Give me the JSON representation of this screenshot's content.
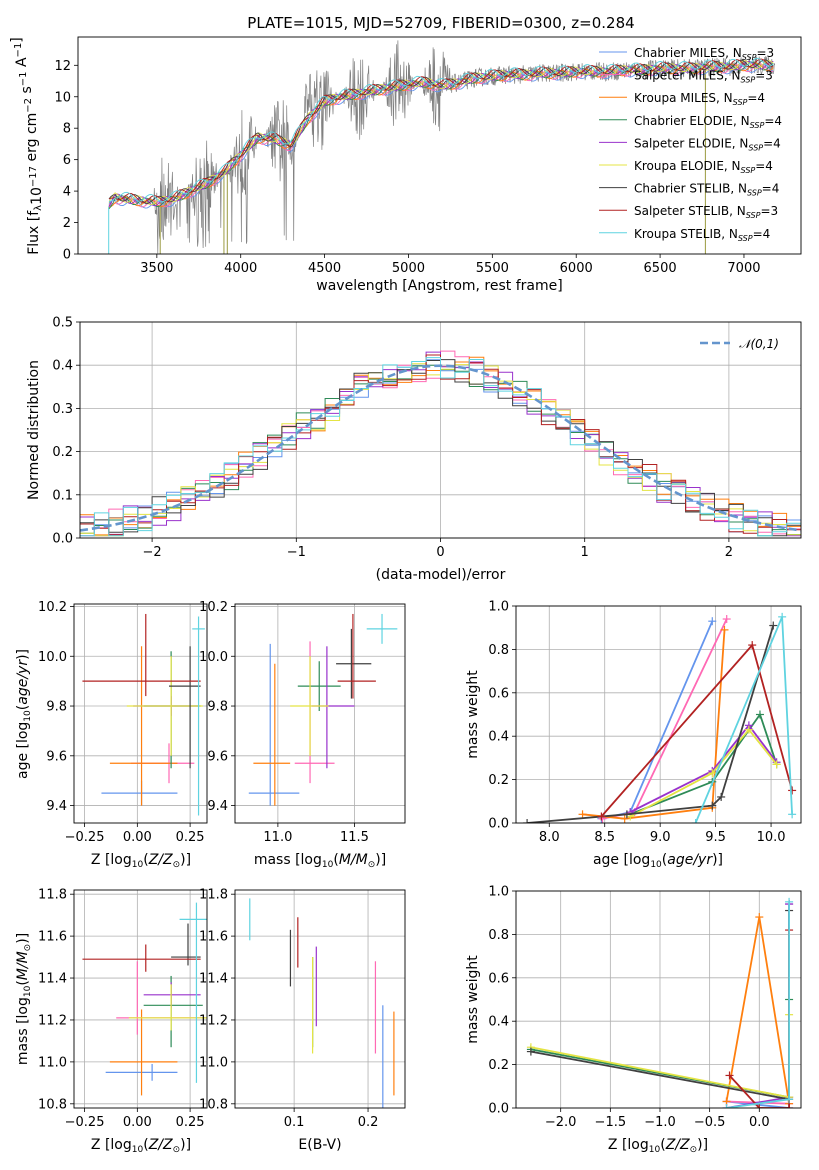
{
  "colors": {
    "chabrier_miles": "#6495ed",
    "salpeter_miles": "#ff69b4",
    "kroupa_miles": "#ff7f0e",
    "chabrier_elodie": "#2e8b57",
    "salpeter_elodie": "#9932cc",
    "kroupa_elodie": "#e4e444",
    "chabrier_stelib": "#404040",
    "salpeter_stelib": "#b22222",
    "kroupa_stelib": "#5fd3e0",
    "gaussian": "#6495cd",
    "spectrum": "#808080"
  },
  "chart_data": [
    {
      "id": "spectrum",
      "type": "line",
      "title": "PLATE=1015, MJD=52709, FIBERID=0300, z=0.284",
      "xlabel": "wavelength [Angstrom, rest frame]",
      "ylabel": "Flux [f_λ10^−17 erg cm^−2 s^−1 A^−1]",
      "xlim": [
        3030,
        7340
      ],
      "ylim": [
        0,
        13.8
      ],
      "xticks": [
        3500,
        4000,
        4500,
        5000,
        5500,
        6000,
        6500,
        7000
      ],
      "yticks": [
        0,
        2,
        4,
        6,
        8,
        10,
        12
      ],
      "legend_position": "right",
      "legend": [
        {
          "label": "Chabrier MILES, N",
          "sub": "SSP",
          "sup": "=3"
        },
        {
          "label": "Salpeter MILES, N",
          "sub": "SSP",
          "sup": "=3"
        },
        {
          "label": "Kroupa MILES, N",
          "sub": "SSP",
          "sup": "=4"
        },
        {
          "label": "Chabrier ELODIE, N",
          "sub": "SSP",
          "sup": "=4"
        },
        {
          "label": "Salpeter ELODIE, N",
          "sub": "SSP",
          "sup": "=4"
        },
        {
          "label": "Kroupa ELODIE, N",
          "sub": "SSP",
          "sup": "=4"
        },
        {
          "label": "Chabrier STELIB, N",
          "sub": "SSP",
          "sup": "=4"
        },
        {
          "label": "Salpeter STELIB, N",
          "sub": "SSP",
          "sup": "=3"
        },
        {
          "label": "Kroupa STELIB, N",
          "sub": "SSP",
          "sup": "=4"
        }
      ],
      "model_curve": {
        "x": [
          3210,
          3250,
          3300,
          3400,
          3500,
          3600,
          3700,
          3800,
          3900,
          4000,
          4100,
          4200,
          4300,
          4400,
          4500,
          4600,
          4700,
          4800,
          4900,
          5000,
          5100,
          5200,
          5300,
          5400,
          5500,
          5600,
          5700,
          5800,
          5900,
          6000,
          6100,
          6200,
          6300,
          6400,
          6500,
          6600,
          6700,
          6800,
          6900,
          7000,
          7100,
          7180
        ],
        "y": [
          3.1,
          3.6,
          3.5,
          3.4,
          3.3,
          3.5,
          4.0,
          4.5,
          5.2,
          6.3,
          7.4,
          7.3,
          6.9,
          8.6,
          9.7,
          10.0,
          10.2,
          10.4,
          10.6,
          10.8,
          10.9,
          10.7,
          10.9,
          11.2,
          11.3,
          11.4,
          11.4,
          11.5,
          11.5,
          11.6,
          11.6,
          11.6,
          11.7,
          11.7,
          11.8,
          11.8,
          11.8,
          11.9,
          11.9,
          12.0,
          12.0,
          12.0
        ]
      }
    },
    {
      "id": "residuals",
      "type": "histogram",
      "xlabel": "(data-model)/error",
      "ylabel": "Normed distribution",
      "xlim": [
        -2.5,
        2.5
      ],
      "ylim": [
        0,
        0.5
      ],
      "xticks": [
        -2,
        -1,
        0,
        1,
        2
      ],
      "yticks": [
        0.0,
        0.1,
        0.2,
        0.3,
        0.4,
        0.5
      ],
      "legend": "𝒩(0,1)",
      "bin_width": 0.1,
      "reference": {
        "name": "𝒩(0,1)",
        "mean": 0,
        "sigma": 1
      }
    },
    {
      "id": "age_vs_Z",
      "type": "errorbar",
      "xlabel": "Z [log10(Z/Z⊙)]",
      "ylabel": "age [log10(age/yr)]",
      "xlim": [
        -0.3,
        0.33
      ],
      "ylim": [
        9.33,
        10.21
      ],
      "xticks": [
        -0.25,
        0.0,
        0.25
      ],
      "yticks": [
        9.4,
        9.6,
        9.8,
        10.0,
        10.2
      ],
      "points": [
        {
          "key": "chabrier_miles",
          "x": 0.02,
          "xerr": [
            0.19,
            0.17
          ],
          "y": 9.45,
          "yerr": [
            0.05,
            0.05
          ]
        },
        {
          "key": "salpeter_miles",
          "x": 0.15,
          "xerr": [
            0.18,
            0.12
          ],
          "y": 9.57,
          "yerr": [
            0.08,
            0.08
          ]
        },
        {
          "key": "kroupa_miles",
          "x": 0.02,
          "xerr": [
            0.15,
            0.17
          ],
          "y": 9.57,
          "yerr": [
            0.17,
            0.47
          ]
        },
        {
          "key": "chabrier_elodie",
          "x": 0.16,
          "xerr": [
            0.13,
            0.14
          ],
          "y": 9.8,
          "yerr": [
            0.25,
            0.22
          ]
        },
        {
          "key": "salpeter_elodie",
          "x": 0.16,
          "xerr": [
            0.18,
            0.13
          ],
          "y": 9.8,
          "yerr": [
            0.04,
            0.04
          ]
        },
        {
          "key": "kroupa_elodie",
          "x": 0.16,
          "xerr": [
            0.21,
            0.15
          ],
          "y": 9.8,
          "yerr": [
            0.2,
            0.2
          ]
        },
        {
          "key": "chabrier_stelib",
          "x": 0.25,
          "xerr": [
            0.1,
            0.05
          ],
          "y": 9.88,
          "yerr": [
            0.33,
            0.16
          ]
        },
        {
          "key": "salpeter_stelib",
          "x": 0.04,
          "xerr": [
            0.3,
            0.26
          ],
          "y": 9.9,
          "yerr": [
            0.06,
            0.27
          ]
        },
        {
          "key": "kroupa_stelib",
          "x": 0.29,
          "xerr": [
            0.03,
            0.03
          ],
          "y": 10.11,
          "yerr": [
            0.75,
            0.05
          ]
        }
      ]
    },
    {
      "id": "age_vs_mass",
      "type": "errorbar",
      "xlabel": "mass [log10(M/M⊙)]",
      "ylabel": "",
      "xlim": [
        10.72,
        11.83
      ],
      "ylim": [
        9.33,
        10.21
      ],
      "xticks": [
        11.0,
        11.5
      ],
      "yticks": [
        9.4,
        9.6,
        9.8,
        10.0,
        10.2
      ],
      "points": [
        {
          "key": "chabrier_miles",
          "x": 10.95,
          "xerr": [
            0.14,
            0.19
          ],
          "y": 9.45,
          "yerr": [
            0.05,
            0.6
          ]
        },
        {
          "key": "salpeter_miles",
          "x": 11.21,
          "xerr": [
            0.1,
            0.16
          ],
          "y": 9.57,
          "yerr": [
            0.08,
            0.49
          ]
        },
        {
          "key": "kroupa_miles",
          "x": 10.98,
          "xerr": [
            0.14,
            0.1
          ],
          "y": 9.57,
          "yerr": [
            0.17,
            0.4
          ]
        },
        {
          "key": "chabrier_elodie",
          "x": 11.27,
          "xerr": [
            0.14,
            0.14
          ],
          "y": 9.88,
          "yerr": [
            0.1,
            0.1
          ]
        },
        {
          "key": "salpeter_elodie",
          "x": 11.32,
          "xerr": [
            0.1,
            0.18
          ],
          "y": 9.8,
          "yerr": [
            0.25,
            0.24
          ]
        },
        {
          "key": "kroupa_elodie",
          "x": 11.21,
          "xerr": [
            0.13,
            0.12
          ],
          "y": 9.8,
          "yerr": [
            0.2,
            0.2
          ]
        },
        {
          "key": "chabrier_stelib",
          "x": 11.48,
          "xerr": [
            0.1,
            0.13
          ],
          "y": 9.97,
          "yerr": [
            0.14,
            0.14
          ]
        },
        {
          "key": "salpeter_stelib",
          "x": 11.49,
          "xerr": [
            0.1,
            0.15
          ],
          "y": 9.9,
          "yerr": [
            0.07,
            0.27
          ]
        },
        {
          "key": "kroupa_stelib",
          "x": 11.68,
          "xerr": [
            0.1,
            0.1
          ],
          "y": 10.11,
          "yerr": [
            0.06,
            0.06
          ]
        }
      ]
    },
    {
      "id": "weight_vs_age",
      "type": "line",
      "xlabel": "age [log10(age/yr)]",
      "ylabel": "mass weight",
      "xlim": [
        7.7,
        10.27
      ],
      "ylim": [
        0,
        1.0
      ],
      "xticks": [
        8.0,
        8.5,
        9.0,
        9.5,
        10.0
      ],
      "yticks": [
        0.0,
        0.2,
        0.4,
        0.6,
        0.8,
        1.0
      ],
      "series": [
        {
          "key": "chabrier_miles",
          "x": [
            8.47,
            8.73,
            9.47
          ],
          "y": [
            0.02,
            0.05,
            0.93
          ]
        },
        {
          "key": "salpeter_miles",
          "x": [
            8.48,
            8.77,
            9.6
          ],
          "y": [
            0.02,
            0.05,
            0.94
          ]
        },
        {
          "key": "kroupa_miles",
          "x": [
            8.3,
            8.68,
            9.47,
            9.58
          ],
          "y": [
            0.04,
            0.02,
            0.07,
            0.89
          ]
        },
        {
          "key": "chabrier_elodie",
          "x": [
            8.73,
            9.47,
            9.9,
            10.05
          ],
          "y": [
            0.04,
            0.19,
            0.5,
            0.27
          ]
        },
        {
          "key": "salpeter_elodie",
          "x": [
            8.73,
            9.47,
            9.8,
            10.05
          ],
          "y": [
            0.05,
            0.24,
            0.45,
            0.28
          ]
        },
        {
          "key": "kroupa_elodie",
          "x": [
            8.73,
            9.47,
            9.8,
            10.05
          ],
          "y": [
            0.03,
            0.23,
            0.43,
            0.27
          ]
        },
        {
          "key": "chabrier_stelib",
          "x": [
            7.8,
            8.7,
            9.47,
            9.55,
            10.02
          ],
          "y": [
            0.0,
            0.04,
            0.08,
            0.12,
            0.91
          ]
        },
        {
          "key": "salpeter_stelib",
          "x": [
            8.47,
            9.83,
            10.19
          ],
          "y": [
            0.03,
            0.82,
            0.15
          ]
        },
        {
          "key": "kroupa_stelib",
          "x": [
            9.32,
            10.1,
            10.19
          ],
          "y": [
            0.0,
            0.95,
            0.04
          ]
        }
      ]
    },
    {
      "id": "mass_vs_Z",
      "type": "errorbar",
      "xlabel": "Z [log10(Z/Z⊙)]",
      "ylabel": "mass [log10(M/M⊙)]",
      "xlim": [
        -0.3,
        0.33
      ],
      "ylim": [
        10.78,
        11.82
      ],
      "xticks": [
        -0.25,
        0.0,
        0.25
      ],
      "yticks": [
        10.8,
        11.0,
        11.2,
        11.4,
        11.6,
        11.8
      ],
      "points": [
        {
          "key": "chabrier_miles",
          "x": 0.07,
          "xerr": [
            0.22,
            0.12
          ],
          "y": 10.95,
          "yerr": [
            0.04,
            0.04
          ]
        },
        {
          "key": "salpeter_miles",
          "x": 0.0,
          "xerr": [
            0.1,
            0.32
          ],
          "y": 11.21,
          "yerr": [
            0.08,
            0.27
          ]
        },
        {
          "key": "kroupa_miles",
          "x": 0.02,
          "xerr": [
            0.15,
            0.17
          ],
          "y": 11.0,
          "yerr": [
            0.16,
            0.25
          ]
        },
        {
          "key": "chabrier_elodie",
          "x": 0.16,
          "xerr": [
            0.13,
            0.15
          ],
          "y": 11.27,
          "yerr": [
            0.2,
            0.14
          ]
        },
        {
          "key": "salpeter_elodie",
          "x": 0.16,
          "xerr": [
            0.13,
            0.14
          ],
          "y": 11.32,
          "yerr": [
            0.06,
            0.06
          ]
        },
        {
          "key": "kroupa_elodie",
          "x": 0.16,
          "xerr": [
            0.2,
            0.2
          ],
          "y": 11.21,
          "yerr": [
            0.06,
            0.16
          ]
        },
        {
          "key": "chabrier_stelib",
          "x": 0.24,
          "xerr": [
            0.08,
            0.06
          ],
          "y": 11.5,
          "yerr": [
            0.04,
            0.16
          ]
        },
        {
          "key": "salpeter_stelib",
          "x": 0.04,
          "xerr": [
            0.3,
            0.26
          ],
          "y": 11.49,
          "yerr": [
            0.06,
            0.07
          ]
        },
        {
          "key": "kroupa_stelib",
          "x": 0.28,
          "xerr": [
            0.08,
            0.05
          ],
          "y": 11.68,
          "yerr": [
            0.78,
            0.08
          ]
        }
      ]
    },
    {
      "id": "mass_vs_ebv",
      "type": "errorbar",
      "xlabel": "E(B-V)",
      "ylabel": "",
      "xlim": [
        0.02,
        0.25
      ],
      "ylim": [
        10.78,
        11.82
      ],
      "xticks": [
        0.1,
        0.2
      ],
      "yticks": [
        10.8,
        11.0,
        11.2,
        11.4,
        11.6,
        11.8
      ],
      "points": [
        {
          "key": "chabrier_miles",
          "x": 0.22,
          "xerr": [
            0,
            0
          ],
          "y": 11.0,
          "yerr": [
            0.22,
            0.27
          ]
        },
        {
          "key": "salpeter_miles",
          "x": 0.21,
          "xerr": [
            0,
            0
          ],
          "y": 11.21,
          "yerr": [
            0.17,
            0.27
          ]
        },
        {
          "key": "kroupa_miles",
          "x": 0.235,
          "xerr": [
            0,
            0
          ],
          "y": 11.0,
          "yerr": [
            0.16,
            0.24
          ]
        },
        {
          "key": "chabrier_elodie",
          "x": 0.125,
          "xerr": [
            0,
            0
          ],
          "y": 11.27,
          "yerr": [
            0.2,
            0.23
          ]
        },
        {
          "key": "salpeter_elodie",
          "x": 0.13,
          "xerr": [
            0,
            0
          ],
          "y": 11.32,
          "yerr": [
            0.15,
            0.23
          ]
        },
        {
          "key": "kroupa_elodie",
          "x": 0.125,
          "xerr": [
            0,
            0
          ],
          "y": 11.21,
          "yerr": [
            0.17,
            0.29
          ]
        },
        {
          "key": "chabrier_stelib",
          "x": 0.095,
          "xerr": [
            0,
            0
          ],
          "y": 11.5,
          "yerr": [
            0.14,
            0.13
          ]
        },
        {
          "key": "salpeter_stelib",
          "x": 0.105,
          "xerr": [
            0,
            0
          ],
          "y": 11.57,
          "yerr": [
            0.12,
            0.12
          ]
        },
        {
          "key": "kroupa_stelib",
          "x": 0.04,
          "xerr": [
            0,
            0
          ],
          "y": 11.68,
          "yerr": [
            0.1,
            0.1
          ]
        }
      ]
    },
    {
      "id": "weight_vs_Z",
      "type": "line",
      "xlabel": "Z [log10(Z/Z⊙)]",
      "ylabel": "mass weight",
      "xlim": [
        -2.45,
        0.42
      ],
      "ylim": [
        0,
        1.0
      ],
      "xticks": [
        -2.0,
        -1.5,
        -1.0,
        -0.5,
        0.0
      ],
      "yticks": [
        0.0,
        0.2,
        0.4,
        0.6,
        0.8,
        1.0
      ],
      "series": [
        {
          "key": "chabrier_miles",
          "x": [
            -0.33,
            0.3,
            0.3
          ],
          "y": [
            0.03,
            0.0,
            0.94
          ]
        },
        {
          "key": "salpeter_miles",
          "x": [
            -0.33,
            0.3,
            0.3
          ],
          "y": [
            0.03,
            0.02,
            0.94
          ]
        },
        {
          "key": "kroupa_miles",
          "x": [
            -0.33,
            0.0,
            0.3
          ],
          "y": [
            0.03,
            0.88,
            0.02
          ]
        },
        {
          "key": "chabrier_elodie",
          "x": [
            -2.3,
            0.3,
            0.3
          ],
          "y": [
            0.27,
            0.05,
            0.5
          ]
        },
        {
          "key": "salpeter_elodie",
          "x": [
            -0.33,
            0.3,
            0.3
          ],
          "y": [
            0.0,
            0.05,
            0.94
          ]
        },
        {
          "key": "kroupa_elodie",
          "x": [
            -2.3,
            0.3,
            0.3
          ],
          "y": [
            0.28,
            0.05,
            0.43
          ]
        },
        {
          "key": "chabrier_stelib",
          "x": [
            -2.3,
            0.3,
            0.3
          ],
          "y": [
            0.26,
            0.04,
            0.91
          ]
        },
        {
          "key": "salpeter_stelib",
          "x": [
            -0.3,
            0.0,
            0.3,
            0.3
          ],
          "y": [
            0.15,
            0.0,
            0.0,
            0.82
          ]
        },
        {
          "key": "kroupa_stelib",
          "x": [
            -0.33,
            0.3,
            0.3
          ],
          "y": [
            0.0,
            0.04,
            0.95
          ]
        }
      ]
    }
  ]
}
